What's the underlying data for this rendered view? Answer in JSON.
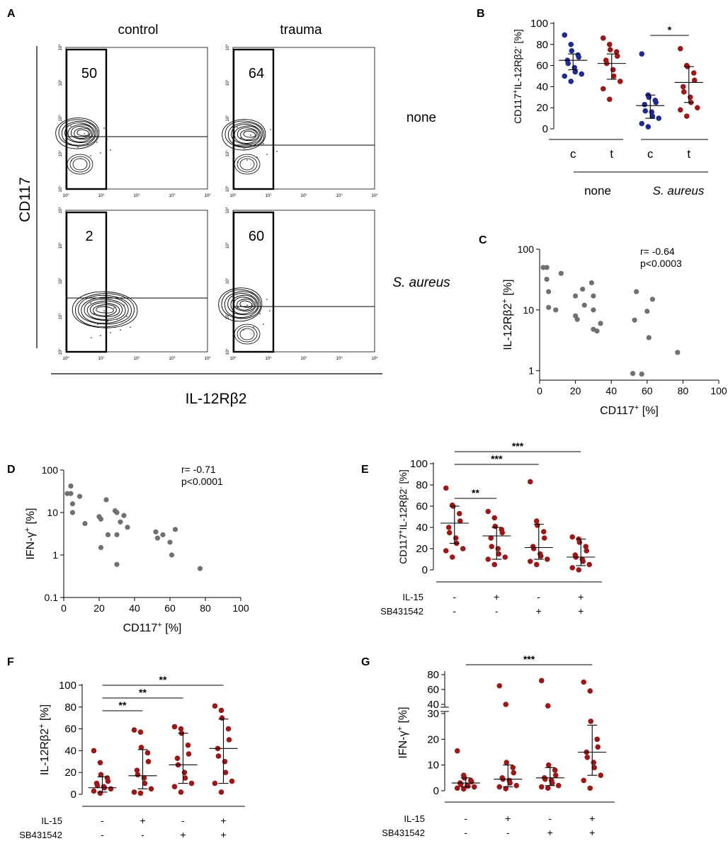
{
  "panel_labels": {
    "a": "A",
    "b": "B",
    "c": "C",
    "d": "D",
    "e": "E",
    "f": "F",
    "g": "G"
  },
  "colors": {
    "control": "#1f2b8f",
    "trauma": "#9c1717",
    "grey": "#707070",
    "axis": "#000000"
  },
  "chart_data": [
    {
      "id": "A",
      "type": "contour",
      "columns": [
        "control",
        "trauma"
      ],
      "rows": [
        "none",
        "S. aureus"
      ],
      "xlabel": "IL-12Rβ2",
      "ylabel": "CD117",
      "x_ticks": [
        "10 0",
        "10 1",
        "10 2",
        "10 3",
        "10 4"
      ],
      "y_ticks": [
        "10 0",
        "10 1",
        "10 2",
        "10 3",
        "10 4"
      ],
      "gate_percentages": {
        "control_none": "50",
        "trauma_none": "64",
        "control_saureus": "2",
        "trauma_saureus": "60"
      }
    },
    {
      "id": "B",
      "type": "scatter",
      "ylabel": "CD117+IL-12Rβ2- [%]",
      "ylim": [
        0,
        100
      ],
      "y_ticks": [
        0,
        20,
        40,
        60,
        80,
        100
      ],
      "categories": [
        "c",
        "t",
        "c",
        "t"
      ],
      "groups": [
        "none",
        "S. aureus"
      ],
      "significance": [
        {
          "from": 2,
          "to": 3,
          "label": "*"
        }
      ],
      "series": [
        {
          "name": "none c",
          "color": "control",
          "values": [
            89,
            80,
            74,
            70,
            68,
            65,
            62,
            58,
            54,
            52,
            50,
            45
          ],
          "median": 65,
          "q1": 56,
          "q3": 71
        },
        {
          "name": "none t",
          "color": "trauma",
          "values": [
            86,
            80,
            75,
            73,
            69,
            65,
            62,
            56,
            50,
            45,
            38,
            28
          ],
          "median": 62,
          "q1": 47,
          "q3": 71
        },
        {
          "name": "S. aureus c",
          "color": "control",
          "values": [
            71,
            32,
            30,
            27,
            25,
            23,
            17,
            16,
            12,
            10,
            5,
            2
          ],
          "median": 22,
          "q1": 10,
          "q3": 32
        },
        {
          "name": "S. aureus t",
          "color": "trauma",
          "values": [
            76,
            60,
            59,
            53,
            46,
            40,
            35,
            30,
            25,
            20,
            18,
            12
          ],
          "median": 44,
          "q1": 25,
          "q3": 59
        }
      ]
    },
    {
      "id": "C",
      "type": "scatter",
      "xlabel": "CD117+ [%]",
      "ylabel": "IL-12Rβ2+ [%]",
      "xlim": [
        0,
        100
      ],
      "x_ticks": [
        0,
        20,
        40,
        60,
        80,
        100
      ],
      "ylim": [
        0.7,
        100
      ],
      "y_ticks": [
        "1",
        "10",
        "100"
      ],
      "yscale": "log",
      "annotation": [
        "r= -0.64",
        "p<0.0003"
      ],
      "points": [
        [
          2,
          50
        ],
        [
          4,
          50
        ],
        [
          4,
          32
        ],
        [
          5,
          20
        ],
        [
          5,
          11
        ],
        [
          9,
          10
        ],
        [
          12,
          40
        ],
        [
          20,
          17
        ],
        [
          20,
          8
        ],
        [
          21,
          7
        ],
        [
          24,
          22
        ],
        [
          25,
          12
        ],
        [
          29,
          28
        ],
        [
          30,
          17
        ],
        [
          30,
          10
        ],
        [
          30,
          4.8
        ],
        [
          32,
          4.5
        ],
        [
          34,
          6
        ],
        [
          52,
          0.9
        ],
        [
          53,
          6.8
        ],
        [
          54,
          20
        ],
        [
          57,
          0.88
        ],
        [
          60,
          9.5
        ],
        [
          61,
          3.5
        ],
        [
          63,
          15
        ],
        [
          77,
          2
        ]
      ]
    },
    {
      "id": "D",
      "type": "scatter",
      "xlabel": "CD117+ [%]",
      "ylabel": "IFN-γ+ [%]",
      "xlim": [
        0,
        100
      ],
      "x_ticks": [
        0,
        20,
        40,
        60,
        80,
        100
      ],
      "ylim": [
        0.1,
        100
      ],
      "y_ticks": [
        "0.1",
        "1",
        "10",
        "100"
      ],
      "yscale": "log",
      "annotation": [
        "r= -0.71",
        "p<0.0001"
      ],
      "points": [
        [
          2,
          28
        ],
        [
          4,
          42
        ],
        [
          4,
          28
        ],
        [
          5,
          16
        ],
        [
          5,
          10
        ],
        [
          9,
          24
        ],
        [
          12,
          5.5
        ],
        [
          20,
          8
        ],
        [
          21,
          1.5
        ],
        [
          21,
          7
        ],
        [
          24,
          20
        ],
        [
          25,
          3
        ],
        [
          29,
          11
        ],
        [
          30,
          10
        ],
        [
          30,
          3
        ],
        [
          30,
          0.6
        ],
        [
          32,
          6
        ],
        [
          34,
          8.5
        ],
        [
          36,
          4.5
        ],
        [
          52,
          3.5
        ],
        [
          53,
          2.5
        ],
        [
          56,
          3
        ],
        [
          60,
          2
        ],
        [
          61,
          1
        ],
        [
          63,
          4
        ],
        [
          77,
          0.48
        ]
      ]
    },
    {
      "id": "E",
      "type": "scatter",
      "ylabel": "CD117+IL-12Rβ2- [%]",
      "ylim": [
        0,
        100
      ],
      "y_ticks": [
        0,
        20,
        40,
        60,
        80,
        100
      ],
      "conditions": {
        "IL-15": [
          "-",
          "+",
          "-",
          "+"
        ],
        "SB431542": [
          "-",
          "-",
          "+",
          "+"
        ]
      },
      "row_labels": [
        "IL-15",
        "SB431542"
      ],
      "significance": [
        {
          "from": 0,
          "to": 1,
          "label": "**"
        },
        {
          "from": 0,
          "to": 2,
          "label": "***"
        },
        {
          "from": 0,
          "to": 3,
          "label": "***"
        }
      ],
      "series": [
        {
          "name": "- -",
          "color": "trauma",
          "values": [
            77,
            61,
            60,
            53,
            46,
            40,
            35,
            30,
            25,
            20,
            18,
            12
          ],
          "median": 44,
          "q1": 25,
          "q3": 60
        },
        {
          "name": "+ -",
          "color": "trauma",
          "values": [
            55,
            49,
            41,
            38,
            35,
            30,
            22,
            20,
            15,
            12,
            10,
            5
          ],
          "median": 32,
          "q1": 10,
          "q3": 40
        },
        {
          "name": "- +",
          "color": "trauma",
          "values": [
            83,
            46,
            42,
            36,
            30,
            22,
            20,
            15,
            13,
            10,
            8,
            5
          ],
          "median": 21,
          "q1": 10,
          "q3": 43
        },
        {
          "name": "+ +",
          "color": "trauma",
          "values": [
            31,
            29,
            26,
            22,
            18,
            14,
            12,
            10,
            8,
            5,
            2,
            0
          ],
          "median": 12,
          "q1": 4,
          "q3": 29
        }
      ]
    },
    {
      "id": "F",
      "type": "scatter",
      "ylabel": "IL-12Rβ2+ [%]",
      "ylim": [
        0,
        100
      ],
      "y_ticks": [
        0,
        20,
        40,
        60,
        80,
        100
      ],
      "conditions": {
        "IL-15": [
          "-",
          "+",
          "-",
          "+"
        ],
        "SB431542": [
          "-",
          "-",
          "+",
          "+"
        ]
      },
      "row_labels": [
        "IL-15",
        "SB431542"
      ],
      "significance": [
        {
          "from": 0,
          "to": 1,
          "label": "**"
        },
        {
          "from": 0,
          "to": 2,
          "label": "**"
        },
        {
          "from": 0,
          "to": 3,
          "label": "**"
        }
      ],
      "series": [
        {
          "name": "- -",
          "color": "trauma",
          "values": [
            40,
            29,
            18,
            15,
            12,
            10,
            8,
            7,
            6,
            5,
            3,
            1
          ],
          "median": 6,
          "q1": 2,
          "q3": 16
        },
        {
          "name": "+ -",
          "color": "trauma",
          "values": [
            59,
            57,
            43,
            38,
            30,
            22,
            18,
            15,
            10,
            5,
            2,
            1
          ],
          "median": 17,
          "q1": 5,
          "q3": 41
        },
        {
          "name": "- +",
          "color": "trauma",
          "values": [
            62,
            60,
            56,
            45,
            37,
            33,
            27,
            20,
            15,
            10,
            7,
            2
          ],
          "median": 27,
          "q1": 10,
          "q3": 56
        },
        {
          "name": "+ +",
          "color": "trauma",
          "values": [
            81,
            77,
            70,
            60,
            50,
            42,
            35,
            30,
            20,
            12,
            10,
            2
          ],
          "median": 42,
          "q1": 10,
          "q3": 69
        }
      ]
    },
    {
      "id": "G",
      "type": "scatter",
      "ylabel": "IFN-γ+ [%]",
      "ylim": [
        0,
        80
      ],
      "axis_break": [
        30,
        35
      ],
      "y_ticks_lower": [
        0,
        10,
        20,
        30
      ],
      "y_ticks_upper": [
        40,
        60,
        80
      ],
      "conditions": {
        "IL-15": [
          "-",
          "+",
          "-",
          "+"
        ],
        "SB431542": [
          "-",
          "-",
          "+",
          "+"
        ]
      },
      "row_labels": [
        "IL-15",
        "SB431542"
      ],
      "significance": [
        {
          "from": 0,
          "to": 3,
          "label": "***"
        }
      ],
      "series": [
        {
          "name": "- -",
          "color": "trauma",
          "values": [
            15.5,
            6,
            5,
            4,
            3.5,
            3,
            2.5,
            2,
            1.8,
            1.5,
            1,
            0.7
          ],
          "median": 3,
          "q1": 1.5,
          "q3": 5
        },
        {
          "name": "+ -",
          "color": "trauma",
          "values": [
            65,
            40,
            11,
            9,
            7,
            5,
            4.5,
            4,
            3,
            2,
            1.5,
            0.8
          ],
          "median": 4.5,
          "q1": 1.5,
          "q3": 10
        },
        {
          "name": "- +",
          "color": "trauma",
          "values": [
            72,
            38,
            10,
            8,
            6,
            5,
            4.5,
            4,
            3,
            2,
            1.5,
            1
          ],
          "median": 5,
          "q1": 2,
          "q3": 9
        },
        {
          "name": "+ +",
          "color": "trauma",
          "values": [
            70,
            58,
            27,
            20,
            17,
            15,
            13,
            11,
            9,
            6,
            4,
            1
          ],
          "median": 15,
          "q1": 6,
          "q3": 25.5
        }
      ]
    }
  ]
}
